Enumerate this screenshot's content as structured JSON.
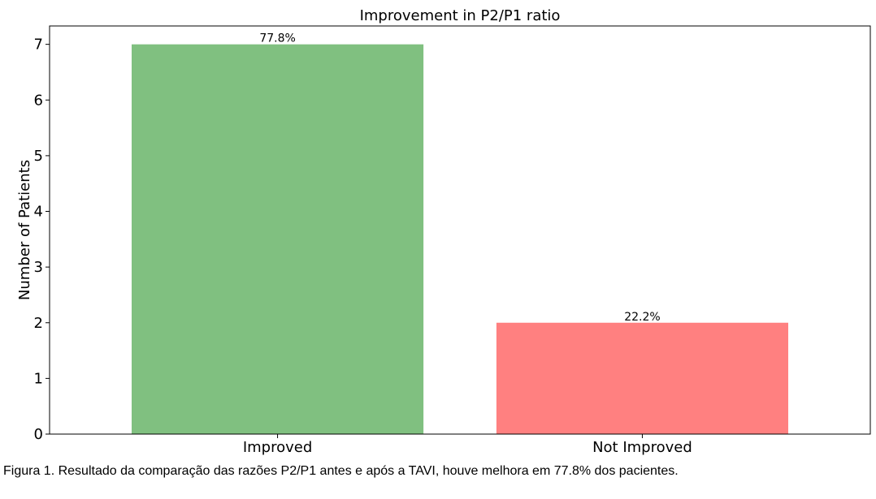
{
  "chart_data": {
    "type": "bar",
    "title": "Improvement in P2/P1 ratio",
    "xlabel": "",
    "ylabel": "Number of Patients",
    "categories": [
      "Improved",
      "Not Improved"
    ],
    "values": [
      7,
      2
    ],
    "data_labels": [
      "77.8%",
      "22.2%"
    ],
    "colors": [
      "#80c080",
      "#ff8080"
    ],
    "ylim": [
      0,
      7.33
    ],
    "yticks": [
      0,
      1,
      2,
      3,
      4,
      5,
      6,
      7
    ],
    "grid": false
  },
  "caption": "Figura 1. Resultado da comparação das razões P2/P1 antes e após a TAVI, houve melhora em 77.8% dos pacientes."
}
